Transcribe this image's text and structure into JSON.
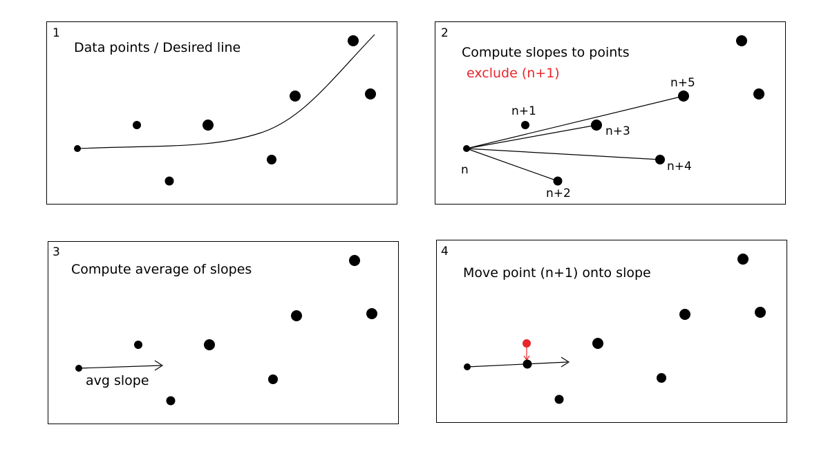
{
  "colors": {
    "point": "#000000",
    "highlight": "#e8262b"
  },
  "panels": [
    {
      "number": "1",
      "caption": "Data points / Desired line"
    },
    {
      "number": "2",
      "caption": "Compute slopes to points",
      "note": "exclude (n+1)",
      "labels": [
        "n",
        "n+1",
        "n+2",
        "n+3",
        "n+4",
        "n+5"
      ]
    },
    {
      "number": "3",
      "caption": "Compute average of slopes",
      "arrow_label": "avg slope"
    },
    {
      "number": "4",
      "caption": "Move point (n+1) onto slope"
    }
  ]
}
